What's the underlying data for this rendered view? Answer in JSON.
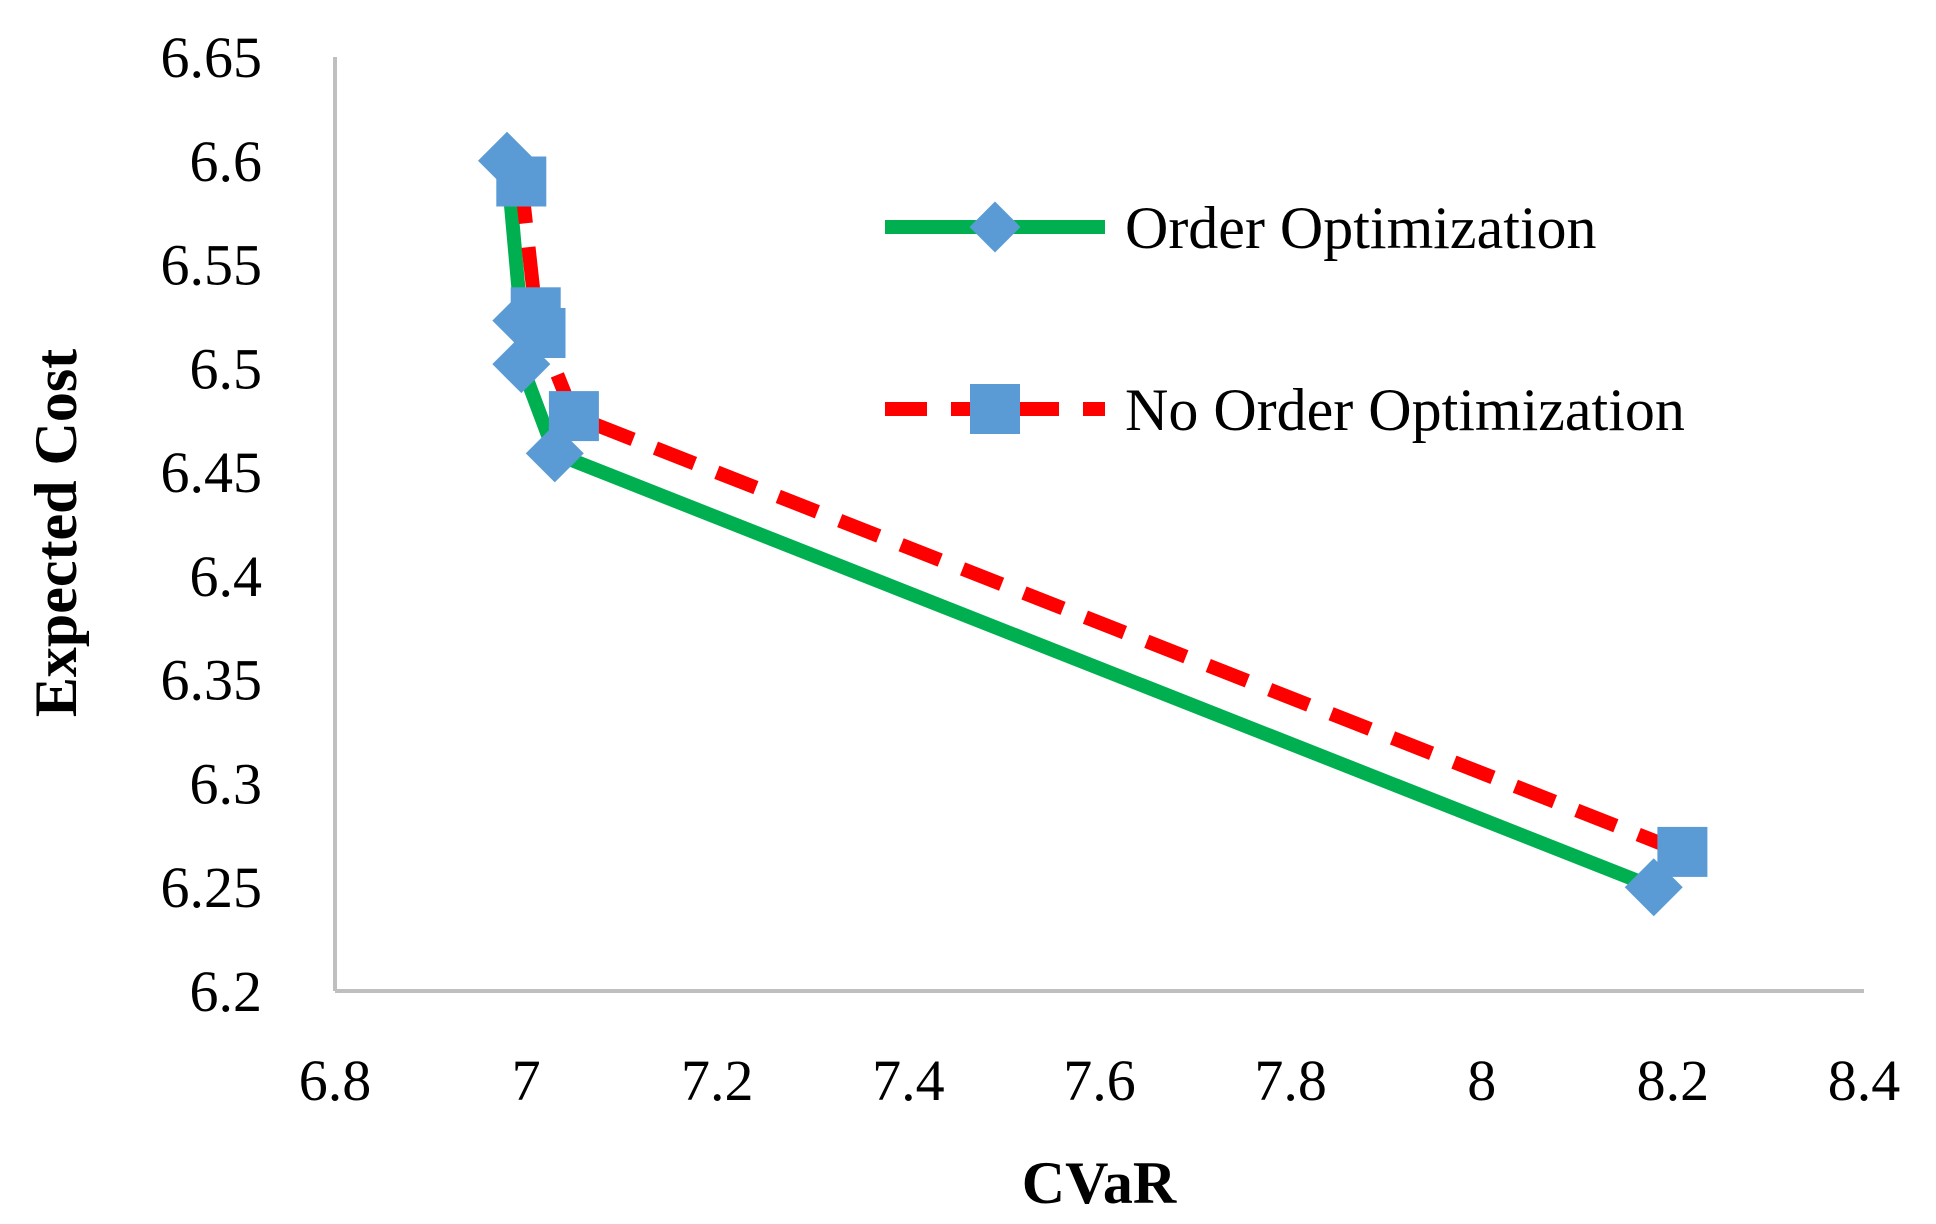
{
  "chart_data": {
    "type": "line",
    "xlabel": "CVaR",
    "ylabel": "Expected Cost",
    "xlim": [
      6.8,
      8.4
    ],
    "ylim": [
      6.2,
      6.65
    ],
    "x_ticks": [
      "6.8",
      "7",
      "7.2",
      "7.4",
      "7.6",
      "7.8",
      "8",
      "8.2",
      "8.4"
    ],
    "y_ticks": [
      "6.2",
      "6.25",
      "6.3",
      "6.35",
      "6.4",
      "6.45",
      "6.5",
      "6.55",
      "6.6",
      "6.65"
    ],
    "x_tick_values": [
      6.8,
      7.0,
      7.2,
      7.4,
      7.6,
      7.8,
      8.0,
      8.2,
      8.4
    ],
    "y_tick_values": [
      6.2,
      6.25,
      6.3,
      6.35,
      6.4,
      6.45,
      6.5,
      6.55,
      6.6,
      6.65
    ],
    "grid": false,
    "legend_position": "top-right",
    "series": [
      {
        "name": "Order Optimization",
        "color": "#00B050",
        "line_style": "solid",
        "marker": "diamond",
        "marker_color": "#5B9BD5",
        "x": [
          6.98,
          6.995,
          6.995,
          7.03,
          8.18
        ],
        "y": [
          6.6,
          6.523,
          6.502,
          6.459,
          6.25
        ]
      },
      {
        "name": "No Order Optimization",
        "color": "#FF0000",
        "line_style": "dashed",
        "marker": "square",
        "marker_color": "#5B9BD5",
        "x": [
          6.995,
          7.01,
          7.015,
          7.05,
          8.21
        ],
        "y": [
          6.59,
          6.527,
          6.517,
          6.477,
          6.267
        ]
      }
    ]
  }
}
